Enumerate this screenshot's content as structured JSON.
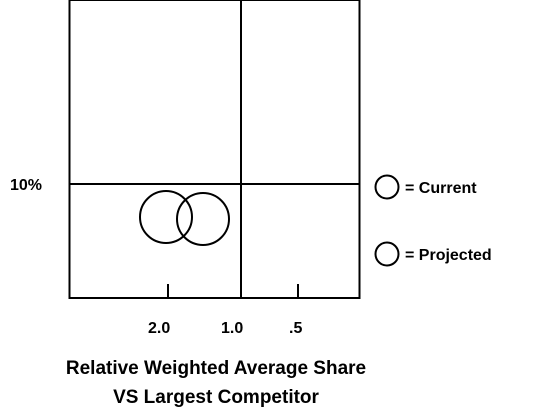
{
  "matrix": {
    "y_tick_label": "10%",
    "x_tick_labels": [
      "2.0",
      "1.0",
      ".5"
    ],
    "axis_title_line1": "Relative Weighted Average Share",
    "axis_title_line2": "VS Largest Competitor"
  },
  "legend": {
    "current_label": "= Current",
    "projected_label": "= Projected"
  },
  "colors": {
    "line": "#000000",
    "background": "#ffffff"
  }
}
